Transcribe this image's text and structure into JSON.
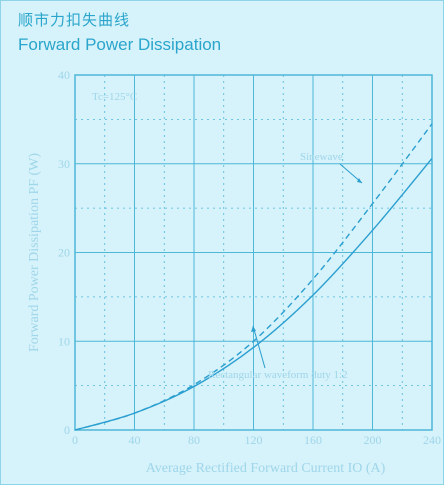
{
  "header": {
    "title_native": "顺市力扣失曲线",
    "title": "Forward Power Dissipation"
  },
  "chart_data": {
    "type": "line",
    "title": "Forward Power Dissipation",
    "xlabel": "Average Rectified Forward Current IO (A)",
    "ylabel": "Forward Power Dissipation PF (W)",
    "xlim": [
      0,
      240
    ],
    "ylim": [
      0,
      40
    ],
    "x_ticks": [
      "0",
      "40",
      "80",
      "120",
      "160",
      "200",
      "240"
    ],
    "y_ticks": [
      "0",
      "10",
      "20",
      "30",
      "40"
    ],
    "grid": true,
    "series": [
      {
        "name": "Sinewave",
        "style": "dashed",
        "x": [
          0,
          40,
          80,
          120,
          160,
          200,
          240
        ],
        "y": [
          0,
          1.9,
          5.1,
          10.0,
          17.0,
          25.5,
          34.5
        ]
      },
      {
        "name": "Rectangular waveform duty 1:2",
        "style": "solid",
        "x": [
          0,
          40,
          80,
          120,
          160,
          200,
          240
        ],
        "y": [
          0,
          1.9,
          4.9,
          9.3,
          15.2,
          22.5,
          30.6
        ]
      }
    ],
    "annotations": [
      {
        "text": "Tc=125°C"
      },
      {
        "text": "Sinewave"
      },
      {
        "text": "Rectangular waveform duty 1:2"
      }
    ],
    "colors": {
      "line": "#2a9fd0",
      "grid": "#4fb7d8",
      "text": "#9fd6ea"
    }
  }
}
